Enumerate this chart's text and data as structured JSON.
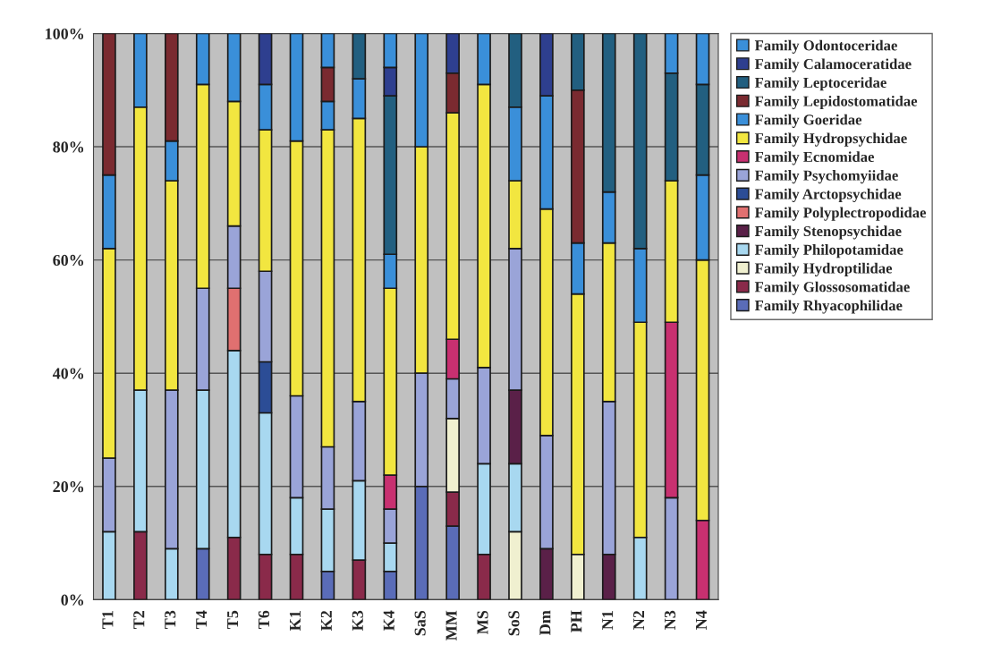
{
  "chart_data": {
    "type": "bar",
    "stacked": true,
    "categories": [
      "T1",
      "T2",
      "T3",
      "T4",
      "T5",
      "T6",
      "K1",
      "K2",
      "K3",
      "K4",
      "SaS",
      "MM",
      "MS",
      "SoS",
      "Dm",
      "PH",
      "N1",
      "N2",
      "N3",
      "N4"
    ],
    "series": [
      {
        "name": "Family Rhyacophilidae",
        "color": "#5a6cb8",
        "values": [
          null,
          null,
          null,
          9,
          null,
          null,
          null,
          5,
          null,
          5,
          20,
          13,
          null,
          null,
          null,
          null,
          null,
          null,
          null,
          null
        ]
      },
      {
        "name": "Family Glossosomatidae",
        "color": "#8a2a4a",
        "values": [
          null,
          12,
          null,
          null,
          11,
          8,
          8,
          null,
          7,
          null,
          null,
          6,
          8,
          null,
          null,
          null,
          null,
          null,
          null,
          null
        ]
      },
      {
        "name": "Family Hydroptilidae",
        "color": "#f0f0d0",
        "values": [
          null,
          null,
          null,
          null,
          null,
          null,
          null,
          null,
          null,
          null,
          null,
          13,
          null,
          12,
          null,
          8,
          null,
          null,
          null,
          null
        ]
      },
      {
        "name": "Family Philopotamidae",
        "color": "#a8d8f0",
        "values": [
          12,
          25,
          9,
          28,
          33,
          25,
          10,
          11,
          14,
          5,
          null,
          null,
          16,
          12,
          null,
          null,
          null,
          11,
          null,
          null
        ]
      },
      {
        "name": "Family Stenopsychidae",
        "color": "#5a2048",
        "values": [
          null,
          null,
          null,
          null,
          null,
          null,
          null,
          null,
          null,
          null,
          null,
          null,
          null,
          13,
          9,
          null,
          8,
          null,
          null,
          null
        ]
      },
      {
        "name": "Family Polyplectropodidae",
        "color": "#e07070",
        "values": [
          null,
          null,
          null,
          null,
          11,
          null,
          null,
          null,
          null,
          null,
          null,
          null,
          null,
          null,
          null,
          null,
          null,
          null,
          null,
          null
        ]
      },
      {
        "name": "Family Arctopsychidae",
        "color": "#2c4d96",
        "values": [
          null,
          null,
          null,
          null,
          null,
          9,
          null,
          null,
          null,
          null,
          null,
          null,
          null,
          null,
          null,
          null,
          null,
          null,
          null,
          null
        ]
      },
      {
        "name": "Family Psychomyiidae",
        "color": "#9aa4d8",
        "values": [
          13,
          null,
          28,
          18,
          11,
          16,
          18,
          11,
          14,
          6,
          20,
          7,
          17,
          25,
          20,
          null,
          27,
          null,
          18,
          null
        ]
      },
      {
        "name": "Family Ecnomidae",
        "color": "#c83070",
        "values": [
          null,
          null,
          null,
          null,
          null,
          null,
          null,
          null,
          null,
          6,
          null,
          7,
          null,
          null,
          null,
          null,
          null,
          null,
          31,
          14
        ]
      },
      {
        "name": "Family Hydropsychidae",
        "color": "#f2e640",
        "values": [
          37,
          50,
          37,
          36,
          22,
          25,
          45,
          56,
          50,
          33,
          40,
          40,
          50,
          12,
          40,
          46,
          28,
          38,
          25,
          46
        ]
      },
      {
        "name": "Family Goeridae",
        "color": "#3a8fd9",
        "values": [
          13,
          null,
          7,
          null,
          null,
          8,
          null,
          5,
          7,
          6,
          null,
          null,
          null,
          13,
          20,
          9,
          9,
          13,
          null,
          15
        ]
      },
      {
        "name": "Family Lepidostomatidae",
        "color": "#7a2a30",
        "values": [
          25,
          null,
          19,
          null,
          null,
          null,
          null,
          6,
          null,
          null,
          null,
          7,
          null,
          null,
          null,
          27,
          null,
          null,
          null,
          null
        ]
      },
      {
        "name": "Family Leptoceridae",
        "color": "#225f80",
        "values": [
          null,
          null,
          null,
          null,
          null,
          null,
          null,
          null,
          8,
          28,
          null,
          null,
          null,
          13,
          null,
          10,
          28,
          38,
          19,
          16
        ]
      },
      {
        "name": "Family Calamoceratidae",
        "color": "#2e3f8f",
        "values": [
          null,
          null,
          null,
          null,
          null,
          9,
          null,
          null,
          null,
          5,
          null,
          7,
          null,
          null,
          11,
          null,
          null,
          null,
          null,
          null
        ]
      },
      {
        "name": "Family Odontoceridae",
        "color": "#3a8fd9",
        "values": [
          null,
          13,
          null,
          9,
          12,
          null,
          19,
          6,
          null,
          6,
          20,
          null,
          9,
          null,
          null,
          null,
          null,
          null,
          7,
          9
        ]
      }
    ],
    "ylim": [
      0,
      100
    ],
    "yticks": [
      {
        "value": 0,
        "label": "0%"
      },
      {
        "value": 20,
        "label": "20%"
      },
      {
        "value": 40,
        "label": "40%"
      },
      {
        "value": 60,
        "label": "60%"
      },
      {
        "value": 80,
        "label": "80%"
      },
      {
        "value": 100,
        "label": "100%"
      }
    ],
    "grid": "y",
    "legend": "right"
  }
}
